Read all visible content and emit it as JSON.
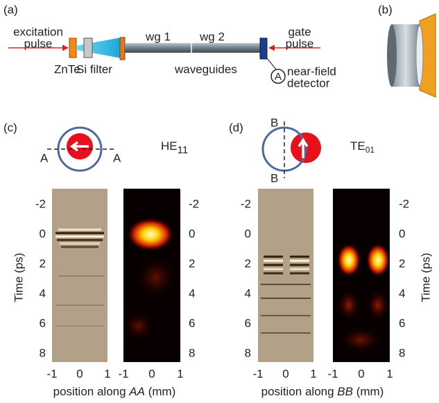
{
  "panel_a": {
    "label": "(a)",
    "excitation_pulse": [
      "excitation",
      "pulse"
    ],
    "znte": "ZnTe",
    "si_filter": "Si filter",
    "wg1": "wg 1",
    "wg2": "wg 2",
    "waveguides": "waveguides",
    "gate_pulse": [
      "gate",
      "pulse"
    ],
    "detector_symbol": "A",
    "detector": [
      "near-field",
      "detector"
    ]
  },
  "panel_b": {
    "label": "(b)"
  },
  "panel_c": {
    "label": "(c)",
    "cut_ends": [
      "A",
      "A"
    ],
    "mode": "HE",
    "mode_sub": "11",
    "time_ticks": [
      -2,
      0,
      2,
      4,
      6,
      8
    ],
    "position_ticks": [
      -1,
      0,
      1
    ],
    "time_label": "Time (ps)",
    "position_label": [
      "position along ",
      "AA",
      " (mm)"
    ]
  },
  "panel_d": {
    "label": "(d)",
    "cut_ends": [
      "B",
      "B"
    ],
    "mode": "TE",
    "mode_sub": "01",
    "time_ticks": [
      -2,
      0,
      2,
      4,
      6,
      8
    ],
    "position_ticks": [
      -1,
      0,
      1
    ],
    "time_label": "Time (ps)",
    "position_label": [
      "position along ",
      "BB",
      " (mm)"
    ]
  }
}
